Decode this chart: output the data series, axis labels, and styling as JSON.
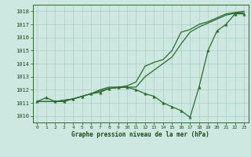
{
  "x": [
    0,
    1,
    2,
    3,
    4,
    5,
    6,
    7,
    8,
    9,
    10,
    11,
    12,
    13,
    14,
    15,
    16,
    17,
    18,
    19,
    20,
    21,
    22,
    23
  ],
  "line_dip": [
    1011.1,
    1011.4,
    1011.1,
    1011.1,
    1011.3,
    1011.5,
    1011.7,
    1011.8,
    1012.1,
    1012.2,
    1012.2,
    1012.0,
    1011.7,
    1011.5,
    1011.0,
    1010.7,
    1010.4,
    1009.9,
    1012.2,
    1015.0,
    1016.5,
    1017.0,
    1017.8,
    1017.8
  ],
  "line_mid": [
    1011.1,
    1011.1,
    1011.1,
    1011.2,
    1011.3,
    1011.5,
    1011.7,
    1011.9,
    1012.1,
    1012.15,
    1012.2,
    1012.2,
    1013.0,
    1013.5,
    1014.0,
    1014.5,
    1015.5,
    1016.4,
    1016.8,
    1017.1,
    1017.4,
    1017.7,
    1017.85,
    1017.9
  ],
  "line_top": [
    1011.1,
    1011.1,
    1011.1,
    1011.2,
    1011.3,
    1011.5,
    1011.7,
    1012.0,
    1012.2,
    1012.2,
    1012.3,
    1012.6,
    1013.8,
    1014.1,
    1014.3,
    1015.0,
    1016.4,
    1016.6,
    1017.0,
    1017.2,
    1017.5,
    1017.8,
    1017.9,
    1018.0
  ],
  "ylim_min": 1009.5,
  "ylim_max": 1018.5,
  "yticks": [
    1010,
    1011,
    1012,
    1013,
    1014,
    1015,
    1016,
    1017,
    1018
  ],
  "xticks": [
    0,
    1,
    2,
    3,
    4,
    5,
    6,
    7,
    8,
    9,
    10,
    11,
    12,
    13,
    14,
    15,
    16,
    17,
    18,
    19,
    20,
    21,
    22,
    23
  ],
  "xlabel": "Graphe pression niveau de la mer (hPa)",
  "line_color": "#2d6a2d",
  "bg_color": "#cce8e0",
  "grid_color": "#aacfc8",
  "label_color": "#1a4a1a",
  "fig_bg": "#cce8e0"
}
